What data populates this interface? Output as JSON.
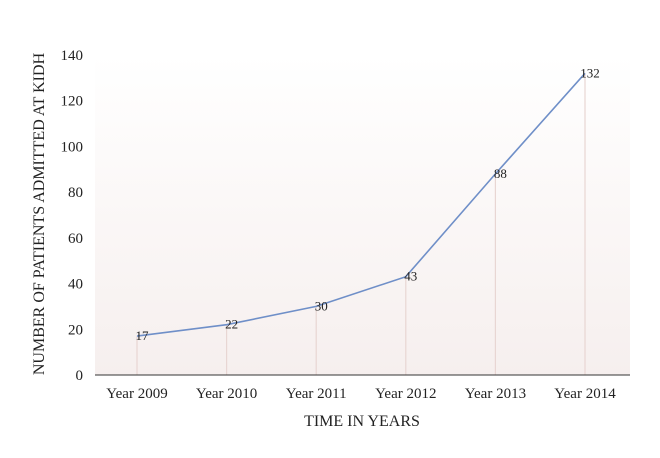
{
  "chart_data": {
    "type": "line",
    "categories": [
      "Year 2009",
      "Year 2010",
      "Year 2011",
      "Year 2012",
      "Year 2013",
      "Year 2014"
    ],
    "series": [
      {
        "values": [
          17,
          22,
          30,
          43,
          88,
          132
        ]
      }
    ],
    "data_labels": [
      "17",
      "22",
      "30",
      "43",
      "88",
      "132"
    ],
    "xlabel": "TIME IN YEARS",
    "ylabel": "NUMBER OF PATIENTS ADMITTED AT KIDH",
    "ylim": [
      0,
      140
    ],
    "yticks": [
      0,
      20,
      40,
      60,
      80,
      100,
      120,
      140
    ],
    "grid": false,
    "drop_lines": true,
    "colors": {
      "line": "#6f8fc8",
      "drop_line": "#e8d6d3",
      "plot_background_top": "#ffffff",
      "plot_background_bottom": "#f6efee",
      "axis": "#333333"
    }
  }
}
